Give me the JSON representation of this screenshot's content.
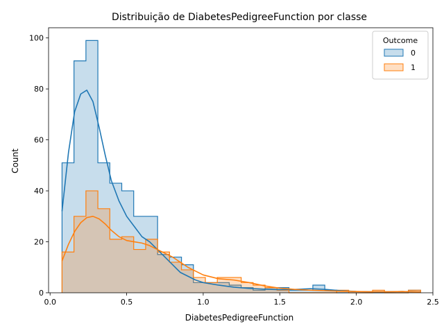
{
  "chart_data": {
    "type": "histogram",
    "title": "Distribuição de DiabetesPedigreeFunction por classe",
    "xlabel": "DiabetesPedigreeFunction",
    "ylabel": "Count",
    "xlim": [
      -0.01,
      2.5
    ],
    "ylim": [
      0,
      104
    ],
    "xticks": [
      0.0,
      0.5,
      1.0,
      1.5,
      2.0,
      2.5
    ],
    "xtick_labels": [
      "0.0",
      "0.5",
      "1.0",
      "1.5",
      "2.0",
      "2.5"
    ],
    "yticks": [
      0,
      20,
      40,
      60,
      80,
      100
    ],
    "ytick_labels": [
      "0",
      "20",
      "40",
      "60",
      "80",
      "100"
    ],
    "grid": false,
    "legend": {
      "title": "Outcome",
      "placement": "top-right"
    },
    "bin_edges": [
      0.078,
      0.156,
      0.234,
      0.312,
      0.39,
      0.468,
      0.546,
      0.624,
      0.702,
      0.78,
      0.858,
      0.936,
      1.014,
      1.092,
      1.17,
      1.248,
      1.326,
      1.404,
      1.482,
      1.56,
      1.638,
      1.716,
      1.794,
      1.872,
      1.95,
      2.028,
      2.106,
      2.184,
      2.262,
      2.34,
      2.42
    ],
    "series": [
      {
        "name": "0",
        "color": "#1f77b4",
        "counts": [
          51,
          91,
          99,
          51,
          43,
          40,
          30,
          30,
          15,
          14,
          11,
          4,
          4,
          4,
          3,
          2,
          1,
          2,
          2,
          1,
          1,
          3,
          1,
          0,
          0,
          0,
          0,
          0,
          0,
          1
        ],
        "kde": {
          "x": [
            0.078,
            0.12,
            0.16,
            0.2,
            0.24,
            0.28,
            0.32,
            0.36,
            0.4,
            0.45,
            0.5,
            0.55,
            0.6,
            0.65,
            0.7,
            0.75,
            0.8,
            0.85,
            0.9,
            0.95,
            1.0,
            1.1,
            1.2,
            1.3,
            1.4,
            1.5,
            1.6,
            1.7,
            1.8,
            1.9,
            2.0,
            2.1,
            2.2,
            2.3,
            2.42
          ],
          "y": [
            32,
            55,
            71,
            78,
            79.5,
            75,
            65,
            54,
            44,
            36,
            30,
            26,
            22,
            20,
            17,
            14,
            11,
            8,
            6.5,
            5,
            4,
            3,
            2.2,
            1.7,
            1.4,
            1.2,
            1.3,
            1.6,
            1.3,
            0.8,
            0.5,
            0.4,
            0.4,
            0.5,
            0.3
          ]
        }
      },
      {
        "name": "1",
        "color": "#ff7f0e",
        "counts": [
          16,
          30,
          40,
          33,
          21,
          22,
          17,
          21,
          16,
          12,
          9,
          6,
          4,
          6,
          6,
          4,
          3,
          2,
          1,
          0,
          0,
          0,
          0,
          1,
          0,
          0,
          1,
          0,
          0,
          1
        ],
        "kde": {
          "x": [
            0.078,
            0.12,
            0.16,
            0.2,
            0.24,
            0.28,
            0.32,
            0.36,
            0.4,
            0.45,
            0.5,
            0.55,
            0.6,
            0.65,
            0.7,
            0.75,
            0.8,
            0.85,
            0.9,
            0.95,
            1.0,
            1.1,
            1.2,
            1.3,
            1.4,
            1.5,
            1.6,
            1.7,
            1.8,
            1.9,
            2.0,
            2.1,
            2.2,
            2.3,
            2.42
          ],
          "y": [
            12.5,
            19,
            24,
            27.5,
            29.5,
            30,
            29,
            27,
            24.5,
            22,
            20.5,
            20,
            19.5,
            18.5,
            17,
            15.5,
            14,
            12,
            10,
            8.5,
            7,
            5.5,
            5,
            4,
            2.7,
            1.8,
            1.3,
            1.0,
            0.8,
            0.6,
            0.5,
            0.4,
            0.4,
            0.5,
            0.3
          ]
        }
      }
    ]
  }
}
